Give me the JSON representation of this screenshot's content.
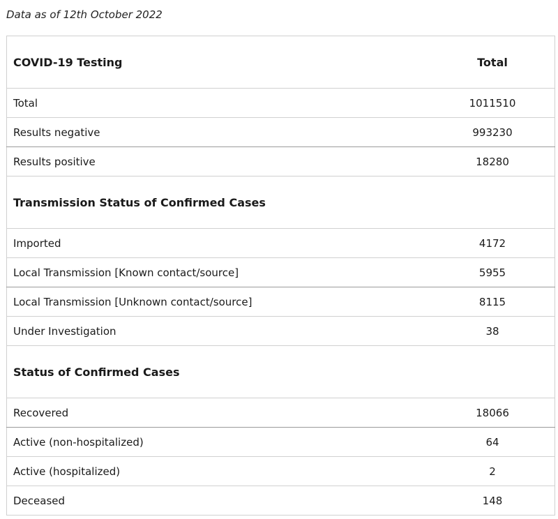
{
  "caption": "Data as of 12th October 2022",
  "header": {
    "label": "COVID-19 Testing",
    "value": "Total"
  },
  "testing": [
    {
      "label": "Total",
      "value": "1011510"
    },
    {
      "label": "Results negative",
      "value": "993230"
    },
    {
      "label": "Results positive",
      "value": "18280"
    }
  ],
  "transmission": {
    "heading": "Transmission Status of Confirmed Cases",
    "rows": [
      {
        "label": "Imported",
        "value": "4172"
      },
      {
        "label": "Local Transmission [Known contact/source]",
        "value": "5955"
      },
      {
        "label": "Local Transmission [Unknown contact/source]",
        "value": "8115"
      },
      {
        "label": "Under Investigation",
        "value": "38"
      }
    ]
  },
  "status": {
    "heading": "Status of Confirmed Cases",
    "rows": [
      {
        "label": "Recovered",
        "value": "18066"
      },
      {
        "label": "Active (non-hospitalized)",
        "value": "64"
      },
      {
        "label": "Active (hospitalized)",
        "value": "2"
      },
      {
        "label": "Deceased",
        "value": "148"
      }
    ]
  }
}
